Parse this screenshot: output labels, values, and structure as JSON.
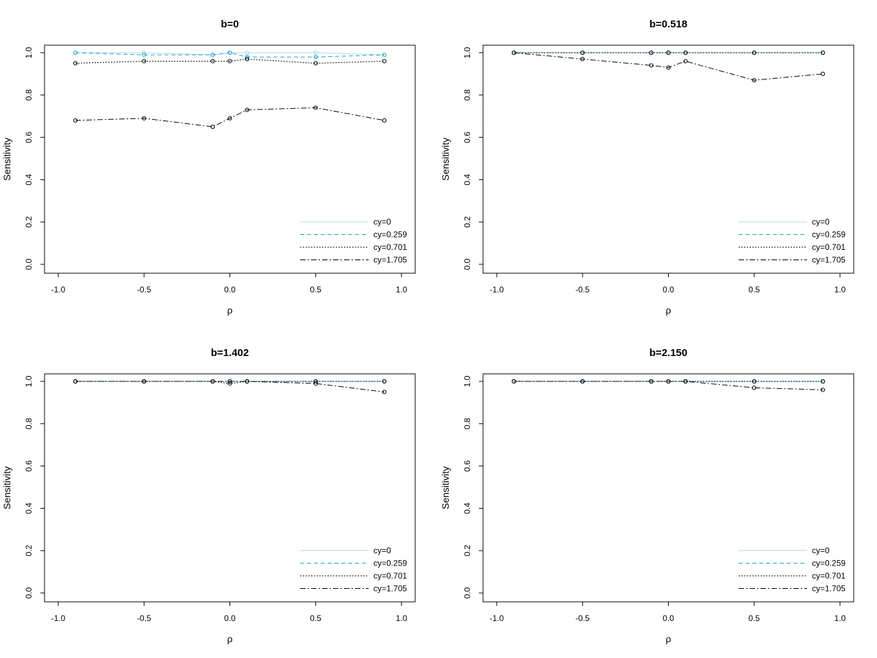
{
  "figure": {
    "xlabel": "ρ",
    "ylabel": "Sensitivity"
  },
  "series_styles": [
    {
      "name": "cy=0",
      "color": "#add8e6",
      "dash": ""
    },
    {
      "name": "cy=0.259",
      "color": "#1fa3d6",
      "dash": "6,4"
    },
    {
      "name": "cy=0.701",
      "color": "#000000",
      "dash": "2,2"
    },
    {
      "name": "cy=1.705",
      "color": "#000000",
      "dash": "8,3,2,3"
    }
  ],
  "chart_data": [
    {
      "type": "line",
      "title": "b=0",
      "xlabel": "ρ",
      "ylabel": "Sensitivity",
      "xlim": [
        -1.0,
        1.0
      ],
      "ylim": [
        0.0,
        1.0
      ],
      "xticks": [
        "-1.0",
        "-0.5",
        "0.0",
        "0.5",
        "1.0"
      ],
      "yticks": [
        "0.0",
        "0.2",
        "0.4",
        "0.6",
        "0.8",
        "1.0"
      ],
      "legend": "bottom-right",
      "x": [
        -0.9,
        -0.5,
        -0.1,
        0.0,
        0.1,
        0.5,
        0.9
      ],
      "series": [
        {
          "name": "cy=0",
          "values": [
            1.0,
            1.0,
            0.99,
            1.0,
            1.0,
            1.0,
            0.99
          ]
        },
        {
          "name": "cy=0.259",
          "values": [
            1.0,
            0.99,
            0.99,
            1.0,
            0.98,
            0.98,
            0.99
          ]
        },
        {
          "name": "cy=0.701",
          "values": [
            0.95,
            0.96,
            0.96,
            0.96,
            0.97,
            0.95,
            0.96
          ]
        },
        {
          "name": "cy=1.705",
          "values": [
            0.68,
            0.69,
            0.65,
            0.69,
            0.73,
            0.74,
            0.68
          ]
        }
      ]
    },
    {
      "type": "line",
      "title": "b=0.518",
      "xlabel": "ρ",
      "ylabel": "Sensitivity",
      "xlim": [
        -1.0,
        1.0
      ],
      "ylim": [
        0.0,
        1.0
      ],
      "xticks": [
        "-1.0",
        "-0.5",
        "0.0",
        "0.5",
        "1.0"
      ],
      "yticks": [
        "0.0",
        "0.2",
        "0.4",
        "0.6",
        "0.8",
        "1.0"
      ],
      "legend": "bottom-right",
      "x": [
        -0.9,
        -0.5,
        -0.1,
        0.0,
        0.1,
        0.5,
        0.9
      ],
      "series": [
        {
          "name": "cy=0",
          "values": [
            1.0,
            1.0,
            1.0,
            1.0,
            1.0,
            1.0,
            1.0
          ]
        },
        {
          "name": "cy=0.259",
          "values": [
            1.0,
            1.0,
            1.0,
            1.0,
            1.0,
            1.0,
            1.0
          ]
        },
        {
          "name": "cy=0.701",
          "values": [
            1.0,
            1.0,
            1.0,
            1.0,
            1.0,
            1.0,
            1.0
          ]
        },
        {
          "name": "cy=1.705",
          "values": [
            1.0,
            0.97,
            0.94,
            0.93,
            0.96,
            0.87,
            0.9
          ]
        }
      ]
    },
    {
      "type": "line",
      "title": "b=1.402",
      "xlabel": "ρ",
      "ylabel": "Sensitivity",
      "xlim": [
        -1.0,
        1.0
      ],
      "ylim": [
        0.0,
        1.0
      ],
      "xticks": [
        "-1.0",
        "-0.5",
        "0.0",
        "0.5",
        "1.0"
      ],
      "yticks": [
        "0.0",
        "0.2",
        "0.4",
        "0.6",
        "0.8",
        "1.0"
      ],
      "legend": "bottom-right",
      "x": [
        -0.9,
        -0.5,
        -0.1,
        0.0,
        0.1,
        0.5,
        0.9
      ],
      "series": [
        {
          "name": "cy=0",
          "values": [
            1.0,
            1.0,
            1.0,
            1.0,
            1.0,
            1.0,
            1.0
          ]
        },
        {
          "name": "cy=0.259",
          "values": [
            1.0,
            1.0,
            1.0,
            1.0,
            1.0,
            1.0,
            1.0
          ]
        },
        {
          "name": "cy=0.701",
          "values": [
            1.0,
            1.0,
            1.0,
            0.99,
            1.0,
            1.0,
            1.0
          ]
        },
        {
          "name": "cy=1.705",
          "values": [
            1.0,
            1.0,
            1.0,
            1.0,
            1.0,
            0.99,
            0.95
          ]
        }
      ]
    },
    {
      "type": "line",
      "title": "b=2.150",
      "xlabel": "ρ",
      "ylabel": "Sensitivity",
      "xlim": [
        -1.0,
        1.0
      ],
      "ylim": [
        0.0,
        1.0
      ],
      "xticks": [
        "-1.0",
        "-0.5",
        "0.0",
        "0.5",
        "1.0"
      ],
      "yticks": [
        "0.0",
        "0.2",
        "0.4",
        "0.6",
        "0.8",
        "1.0"
      ],
      "legend": "bottom-right",
      "x": [
        -0.9,
        -0.5,
        -0.1,
        0.0,
        0.1,
        0.5,
        0.9
      ],
      "series": [
        {
          "name": "cy=0",
          "values": [
            1.0,
            1.0,
            1.0,
            1.0,
            1.0,
            1.0,
            1.0
          ]
        },
        {
          "name": "cy=0.259",
          "values": [
            1.0,
            1.0,
            1.0,
            1.0,
            1.0,
            1.0,
            1.0
          ]
        },
        {
          "name": "cy=0.701",
          "values": [
            1.0,
            1.0,
            1.0,
            1.0,
            1.0,
            1.0,
            1.0
          ]
        },
        {
          "name": "cy=1.705",
          "values": [
            1.0,
            1.0,
            1.0,
            1.0,
            1.0,
            0.97,
            0.96
          ]
        }
      ]
    }
  ]
}
